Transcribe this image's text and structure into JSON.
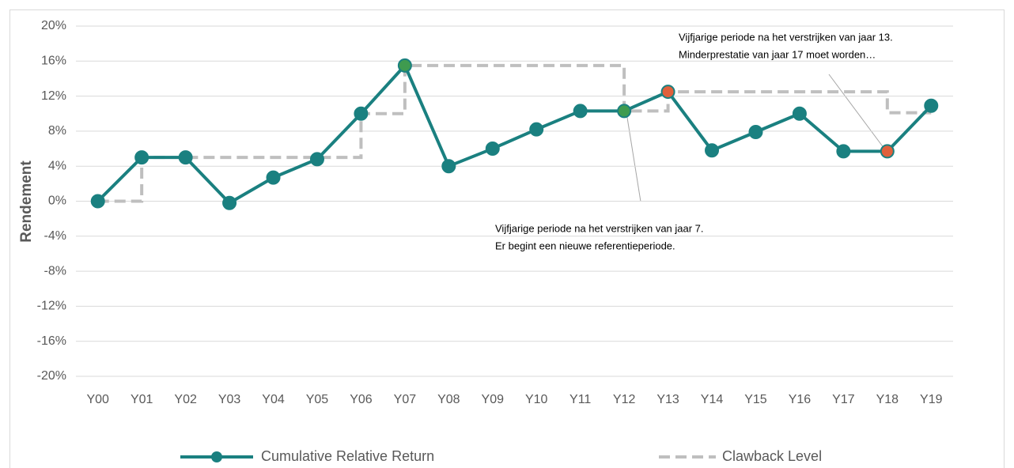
{
  "chart_data": {
    "type": "line",
    "y_label": "Rendement",
    "categories": [
      "Y00",
      "Y01",
      "Y02",
      "Y03",
      "Y04",
      "Y05",
      "Y06",
      "Y07",
      "Y08",
      "Y09",
      "Y10",
      "Y11",
      "Y12",
      "Y13",
      "Y14",
      "Y15",
      "Y16",
      "Y17",
      "Y18",
      "Y19"
    ],
    "series": [
      {
        "name": "Cumulative Relative Return",
        "color": "#1a8080",
        "style": "solid-markers",
        "values": [
          0,
          5,
          5,
          -0.2,
          2.7,
          4.8,
          10,
          15.5,
          4,
          6,
          8.2,
          10.3,
          10.3,
          12.5,
          5.8,
          7.9,
          10,
          5.7,
          5.7,
          10.9
        ],
        "point_colors": [
          null,
          null,
          null,
          null,
          null,
          null,
          null,
          "#3f9b4f",
          null,
          null,
          null,
          null,
          "#3f9b4f",
          "#e0603c",
          null,
          null,
          null,
          null,
          "#e0603c",
          null
        ]
      },
      {
        "name": "Clawback Level",
        "color": "#bfbfbf",
        "style": "dashed-step",
        "values": [
          0,
          5,
          5,
          5,
          5,
          5,
          10,
          15.5,
          15.5,
          15.5,
          15.5,
          15.5,
          10.3,
          12.5,
          12.5,
          12.5,
          12.5,
          12.5,
          10.1,
          10.1
        ]
      }
    ],
    "ylim": [
      -20,
      20
    ],
    "yticks": [
      {
        "value": -20,
        "label": "-20%"
      },
      {
        "value": -16,
        "label": "-16%"
      },
      {
        "value": -12,
        "label": "-12%"
      },
      {
        "value": -8,
        "label": "-8%"
      },
      {
        "value": -4,
        "label": "-4%"
      },
      {
        "value": 0,
        "label": "0%"
      },
      {
        "value": 4,
        "label": "4%"
      },
      {
        "value": 8,
        "label": "8%"
      },
      {
        "value": 12,
        "label": "12%"
      },
      {
        "value": 16,
        "label": "16%"
      },
      {
        "value": 20,
        "label": "20%"
      }
    ],
    "grid": true,
    "legend": "bottom",
    "annotations": [
      {
        "lines": [
          "Vijfjarige periode na het verstrijken van jaar 13.",
          "Minderprestatie van jaar 17 moet worden…"
        ]
      },
      {
        "lines": [
          "Vijfjarige periode na het verstrijken van jaar 7.",
          "Er begint een nieuwe referentieperiode."
        ]
      }
    ]
  }
}
